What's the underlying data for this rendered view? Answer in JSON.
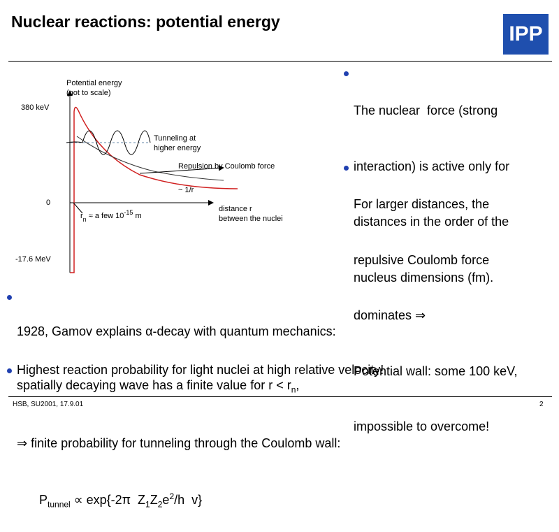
{
  "header": {
    "title": "Nuclear reactions: potential energy",
    "logo": "IPP"
  },
  "diagram": {
    "y_label": [
      "Potential energy",
      "(not to scale)"
    ],
    "ticks": [
      "380 keV",
      "0",
      "-17.6 MeV"
    ],
    "tunneling": [
      "Tunneling at",
      "higher energy"
    ],
    "repulsion": "Repulsion by Coulomb force",
    "inverse": "~ 1/r",
    "rn": [
      "r",
      "n",
      " ≈ a few 10",
      "-15",
      " m"
    ],
    "x_label": [
      "distance  r",
      "between the nuclei"
    ]
  },
  "right_bullets": [
    {
      "lines": [
        "The nuclear  force (strong",
        "interaction) is active only for",
        "distances in the order of the",
        "nucleus dimensions (fm)."
      ]
    },
    {
      "lines": [
        "For larger distances, the",
        "repulsive Coulomb force",
        "dominates ⇒",
        "Potential wall: some 100 keV,",
        "impossible to overcome!"
      ]
    }
  ],
  "bottom": {
    "line1": "1928, Gamov explains α-decay with quantum mechanics:",
    "line2": [
      "spatially decaying wave has a finite value for r < r",
      "n",
      ","
    ],
    "line3": "⇒ finite probability for tunneling through the Coulomb wall:",
    "formula": [
      "P",
      "tunnel",
      " ∝ exp{-2π  Z",
      "1",
      "Z",
      "2",
      "e",
      "2",
      "/h  v}"
    ],
    "line5": "Highest reaction probability for light nuclei at high relative velocity!"
  },
  "footer": {
    "left": "HSB, SU2001, 17.9.01",
    "page": "2"
  }
}
